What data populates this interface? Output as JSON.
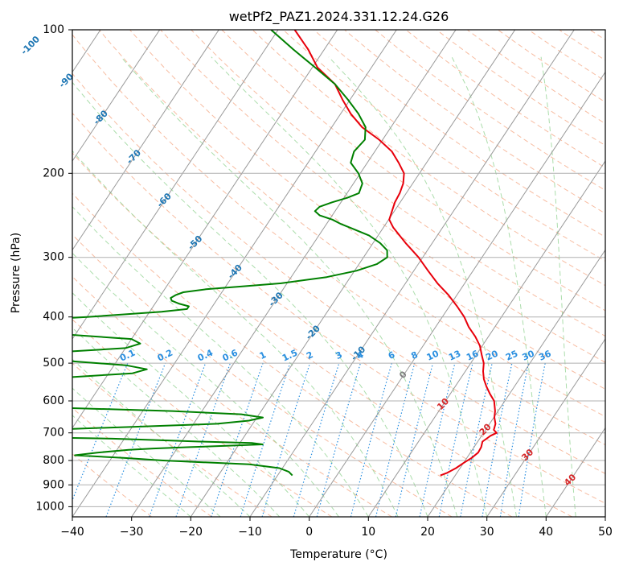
{
  "chart_data": {
    "type": "line",
    "subtype": "skew-t log-p diagram",
    "title": "wetPf2_PAZ1.2024.331.12.24.G26",
    "xlabel": "Temperature (°C)",
    "ylabel": "Pressure (hPa)",
    "xlim": [
      -40,
      50
    ],
    "ylim": [
      1050,
      100
    ],
    "yscale": "log",
    "x_ticks": [
      -40,
      -30,
      -20,
      -10,
      0,
      10,
      20,
      30,
      40,
      50
    ],
    "x_tick_labels": [
      "−40",
      "−30",
      "−20",
      "−10",
      "0",
      "10",
      "20",
      "30",
      "40",
      "50"
    ],
    "y_ticks": [
      1000,
      900,
      800,
      700,
      600,
      500,
      400,
      300,
      200,
      100
    ],
    "y_tick_labels": [
      "1000",
      "900",
      "800",
      "700",
      "600",
      "500",
      "400",
      "300",
      "200",
      "100"
    ],
    "grid": true,
    "colors": {
      "temperature": "#e8000b",
      "dewpoint": "#008000",
      "isotherm": "#999999",
      "dry_adiabat": "#f4a582",
      "moist_adiabat": "#8fd18f",
      "mixing_ratio": "#2a8fe0",
      "label_blue": "#1f77b4",
      "label_red": "#d62728",
      "label_gray": "#7f7f7f",
      "outer_curve": "#c8b38a"
    },
    "isotherm_labels": {
      "values": [
        "-100",
        "-90",
        "-80",
        "-70",
        "-60",
        "-50",
        "-40",
        "-30",
        "-20",
        "-10"
      ],
      "pressures": [
        108,
        128,
        153,
        185,
        228,
        280,
        322,
        368,
        432,
        478
      ]
    },
    "warm_isotherm_labels": {
      "zero": {
        "value": "0",
        "pressure": 530
      },
      "positive": [
        {
          "value": "10",
          "pressure": 610
        },
        {
          "value": "20",
          "pressure": 690
        },
        {
          "value": "30",
          "pressure": 780
        },
        {
          "value": "40",
          "pressure": 880
        }
      ]
    },
    "mixing_ratio_labels": {
      "values": [
        "0.1",
        "0.2",
        "0.4",
        "0.6",
        "1",
        "1.5",
        "2",
        "3",
        "4",
        "6",
        "8",
        "10",
        "13",
        "16",
        "20",
        "25",
        "30",
        "36"
      ],
      "pressure": 500
    },
    "series": [
      {
        "name": "",
        "key": "temperature",
        "pressure": [
          860,
          850,
          830,
          810,
          790,
          770,
          750,
          730,
          710,
          700,
          690,
          670,
          650,
          630,
          600,
          580,
          560,
          540,
          520,
          500,
          480,
          460,
          440,
          420,
          400,
          380,
          360,
          340,
          320,
          300,
          280,
          260,
          250,
          240,
          230,
          220,
          210,
          200,
          190,
          180,
          170,
          160,
          150,
          140,
          130,
          120,
          110,
          100
        ],
        "temperature": [
          17.5,
          18.3,
          19.3,
          20.0,
          20.8,
          21.3,
          21.2,
          20.8,
          21.5,
          22.2,
          21.4,
          21.0,
          20.1,
          19.5,
          18.2,
          16.7,
          15.3,
          14.0,
          13.0,
          12.2,
          10.9,
          9.6,
          7.8,
          5.6,
          3.7,
          1.3,
          -1.4,
          -4.6,
          -7.6,
          -10.7,
          -14.5,
          -18.3,
          -19.9,
          -20.4,
          -20.9,
          -21.1,
          -21.6,
          -22.6,
          -24.7,
          -27.1,
          -30.6,
          -34.9,
          -38.3,
          -41.3,
          -44.3,
          -49.1,
          -52.7,
          -57.2
        ]
      },
      {
        "name": "",
        "key": "dewpoint",
        "pressure": [
          860,
          845,
          830,
          815,
          800,
          790,
          780,
          770,
          760,
          755,
          750,
          745,
          740,
          735,
          730,
          725,
          720,
          715,
          710,
          705,
          700,
          690,
          680,
          670,
          660,
          650,
          640,
          630,
          620,
          610,
          600,
          580,
          560,
          545,
          535,
          525,
          515,
          505,
          495,
          485,
          475,
          465,
          455,
          445,
          435,
          425,
          415,
          405,
          400,
          395,
          390,
          385,
          380,
          375,
          370,
          365,
          360,
          355,
          350,
          345,
          340,
          330,
          320,
          310,
          300,
          290,
          280,
          270,
          260,
          255,
          250,
          245,
          240,
          235,
          230,
          225,
          220,
          210,
          200,
          190,
          180,
          170,
          160,
          150,
          140,
          130,
          120,
          110,
          100
        ],
        "temperature": [
          -7.5,
          -8.5,
          -10.5,
          -16.0,
          -31.0,
          -38.0,
          -46.5,
          -43.0,
          -38.0,
          -34.0,
          -28.0,
          -22.0,
          -16.0,
          -18.0,
          -27.0,
          -34.0,
          -42.0,
          -55.0,
          -70.0,
          -72.0,
          -70.0,
          -55.0,
          -40.0,
          -26.0,
          -21.0,
          -19.0,
          -23.0,
          -35.0,
          -55.0,
          -75.0,
          -72.0,
          -72.0,
          -72.0,
          -70.0,
          -56.0,
          -46.0,
          -44.0,
          -48.0,
          -58.0,
          -66.0,
          -62.0,
          -50.0,
          -48.0,
          -50.0,
          -62.0,
          -70.0,
          -70.0,
          -67.0,
          -60.0,
          -54.0,
          -48.0,
          -44.0,
          -44.0,
          -46.0,
          -47.5,
          -48.0,
          -47.5,
          -46.5,
          -43.0,
          -37.0,
          -31.0,
          -24.0,
          -19.7,
          -17.0,
          -16.0,
          -16.8,
          -18.8,
          -21.5,
          -25.6,
          -27.7,
          -29.5,
          -32.1,
          -33.4,
          -33.1,
          -31.5,
          -29.4,
          -28.0,
          -28.5,
          -30.3,
          -32.8,
          -33.5,
          -33.0,
          -34.3,
          -37.0,
          -40.4,
          -44.3,
          -49.5,
          -55.2,
          -61.2
        ]
      }
    ]
  }
}
